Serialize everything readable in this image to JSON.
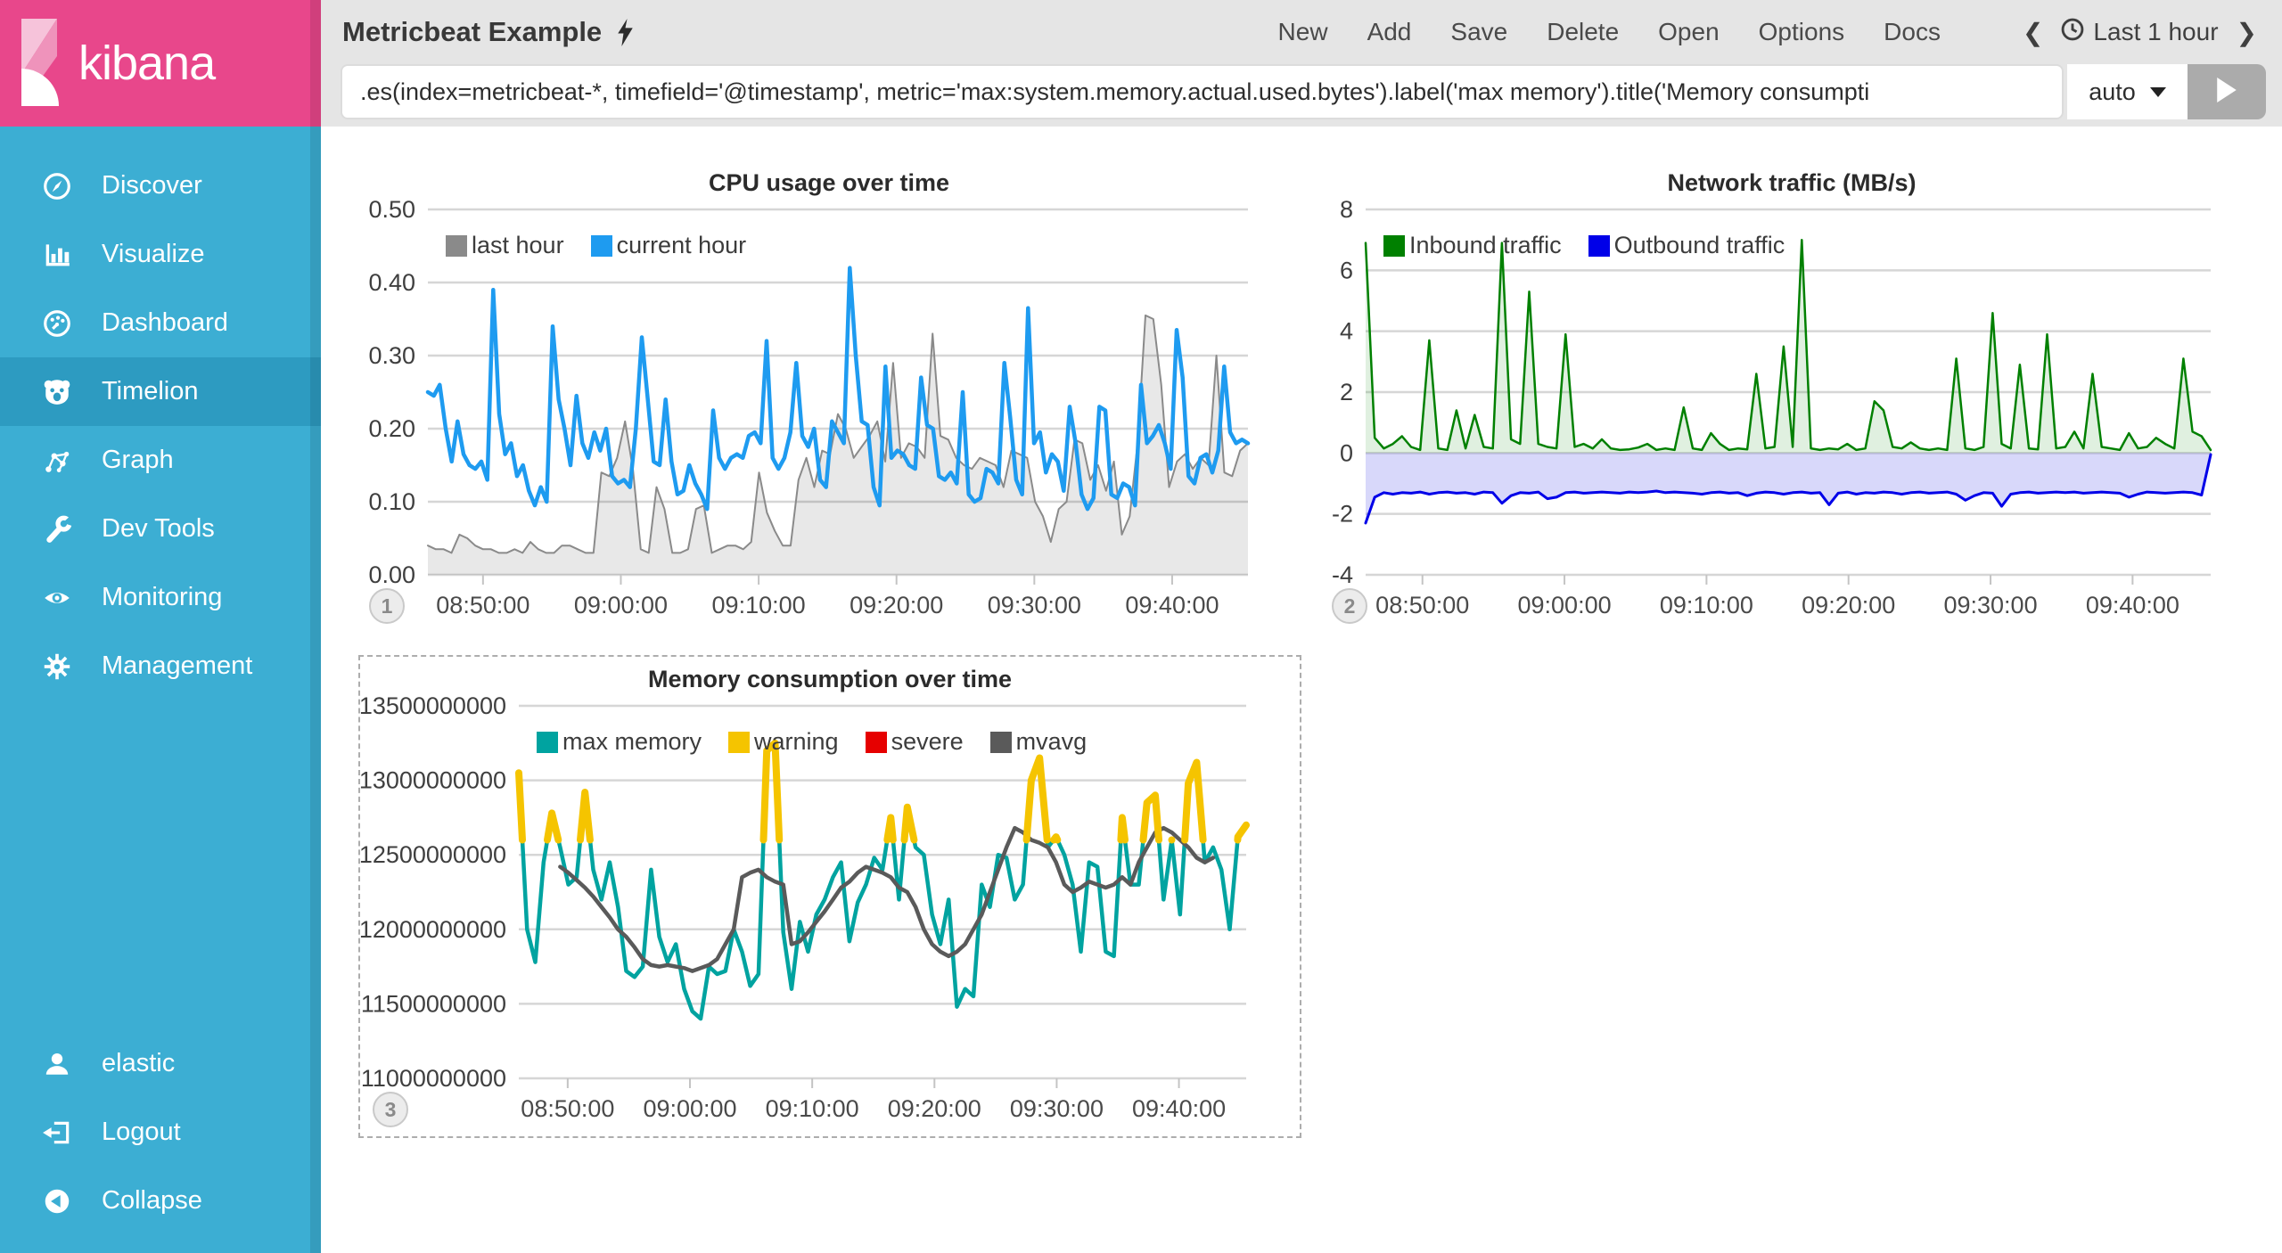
{
  "sidebar": {
    "logo_text": "kibana",
    "items": [
      {
        "label": "Discover",
        "icon": "compass-icon",
        "selected": false
      },
      {
        "label": "Visualize",
        "icon": "bar-chart-icon",
        "selected": false
      },
      {
        "label": "Dashboard",
        "icon": "dashboard-icon",
        "selected": false
      },
      {
        "label": "Timelion",
        "icon": "timelion-icon",
        "selected": true
      },
      {
        "label": "Graph",
        "icon": "graph-icon",
        "selected": false
      },
      {
        "label": "Dev Tools",
        "icon": "wrench-icon",
        "selected": false
      },
      {
        "label": "Monitoring",
        "icon": "eye-icon",
        "selected": false
      },
      {
        "label": "Management",
        "icon": "gear-icon",
        "selected": false
      }
    ],
    "footer_items": [
      {
        "label": "elastic",
        "icon": "user-icon"
      },
      {
        "label": "Logout",
        "icon": "logout-icon"
      },
      {
        "label": "Collapse",
        "icon": "collapse-icon"
      }
    ]
  },
  "topbar": {
    "title": "Metricbeat Example",
    "menu": [
      "New",
      "Add",
      "Save",
      "Delete",
      "Open",
      "Options",
      "Docs"
    ],
    "time_picker": {
      "prev": "❮",
      "label": "Last 1 hour",
      "next": "❯"
    }
  },
  "querybar": {
    "query": ".es(index=metricbeat-*, timefield='@timestamp', metric='max:system.memory.actual.used.bytes').label('max memory').title('Memory consumpti",
    "interval": "auto"
  },
  "colors": {
    "sidebar": "#3caed3",
    "sidebar_selected": "#2d9bc1",
    "brand_pink": "#e8478b",
    "topbar": "#e5e5e5",
    "grid": "#d6d6d6"
  },
  "chart_data": [
    {
      "type": "line",
      "badge": "1",
      "title": "CPU usage over time",
      "x_range": [
        "08:46:00",
        "09:45:30"
      ],
      "x_ticks": [
        "08:50:00",
        "09:00:00",
        "09:10:00",
        "09:20:00",
        "09:30:00",
        "09:40:00"
      ],
      "ylim": [
        0,
        0.5
      ],
      "y_ticks": [
        "0.00",
        "0.10",
        "0.20",
        "0.30",
        "0.40",
        "0.50"
      ],
      "grid": true,
      "legend_position": "top-left",
      "draw_order": [
        0,
        1
      ],
      "series": [
        {
          "name": "last hour",
          "color": "#8a8a8a",
          "width": 2,
          "area": true,
          "fill": "rgba(0,0,0,0.09)",
          "baseline": 0,
          "values": [
            0.04,
            0.035,
            0.035,
            0.03,
            0.055,
            0.05,
            0.04,
            0.035,
            0.035,
            0.03,
            0.03,
            0.035,
            0.03,
            0.045,
            0.035,
            0.03,
            0.03,
            0.04,
            0.04,
            0.035,
            0.03,
            0.03,
            0.14,
            0.135,
            0.16,
            0.21,
            0.145,
            0.035,
            0.03,
            0.12,
            0.09,
            0.03,
            0.03,
            0.035,
            0.09,
            0.095,
            0.03,
            0.035,
            0.04,
            0.04,
            0.035,
            0.045,
            0.14,
            0.085,
            0.06,
            0.04,
            0.04,
            0.13,
            0.16,
            0.12,
            0.17,
            0.165,
            0.22,
            0.2,
            0.16,
            0.175,
            0.19,
            0.21,
            0.155,
            0.29,
            0.16,
            0.18,
            0.175,
            0.16,
            0.33,
            0.19,
            0.185,
            0.16,
            0.15,
            0.145,
            0.16,
            0.155,
            0.15,
            0.12,
            0.17,
            0.165,
            0.16,
            0.1,
            0.08,
            0.045,
            0.09,
            0.1,
            0.185,
            0.18,
            0.13,
            0.15,
            0.115,
            0.155,
            0.055,
            0.08,
            0.18,
            0.355,
            0.35,
            0.26,
            0.12,
            0.155,
            0.165,
            0.145,
            0.16,
            0.15,
            0.3,
            0.14,
            0.135,
            0.17,
            0.18
          ]
        },
        {
          "name": "current hour",
          "color": "#1e9bf0",
          "width": 4.5,
          "values": [
            0.25,
            0.245,
            0.26,
            0.2,
            0.155,
            0.21,
            0.165,
            0.15,
            0.145,
            0.155,
            0.13,
            0.39,
            0.22,
            0.165,
            0.18,
            0.135,
            0.15,
            0.115,
            0.095,
            0.12,
            0.1,
            0.34,
            0.24,
            0.2,
            0.15,
            0.245,
            0.18,
            0.16,
            0.195,
            0.17,
            0.2,
            0.135,
            0.125,
            0.13,
            0.12,
            0.2,
            0.325,
            0.24,
            0.155,
            0.15,
            0.24,
            0.155,
            0.11,
            0.115,
            0.15,
            0.125,
            0.11,
            0.09,
            0.225,
            0.16,
            0.145,
            0.16,
            0.165,
            0.16,
            0.19,
            0.195,
            0.18,
            0.32,
            0.16,
            0.145,
            0.16,
            0.195,
            0.29,
            0.19,
            0.175,
            0.2,
            0.13,
            0.12,
            0.21,
            0.195,
            0.18,
            0.42,
            0.3,
            0.21,
            0.205,
            0.12,
            0.095,
            0.285,
            0.16,
            0.17,
            0.165,
            0.15,
            0.145,
            0.27,
            0.205,
            0.2,
            0.135,
            0.13,
            0.14,
            0.125,
            0.25,
            0.11,
            0.1,
            0.105,
            0.145,
            0.14,
            0.125,
            0.29,
            0.215,
            0.13,
            0.11,
            0.365,
            0.18,
            0.195,
            0.14,
            0.165,
            0.155,
            0.115,
            0.23,
            0.18,
            0.11,
            0.09,
            0.105,
            0.23,
            0.225,
            0.11,
            0.105,
            0.125,
            0.12,
            0.095,
            0.26,
            0.18,
            0.19,
            0.205,
            0.18,
            0.145,
            0.335,
            0.27,
            0.135,
            0.125,
            0.16,
            0.165,
            0.14,
            0.17,
            0.285,
            0.195,
            0.18,
            0.185,
            0.18
          ]
        }
      ]
    },
    {
      "type": "area",
      "badge": "2",
      "title": "Network traffic (MB/s)",
      "x_range": [
        "08:46:00",
        "09:45:30"
      ],
      "x_ticks": [
        "08:50:00",
        "09:00:00",
        "09:10:00",
        "09:20:00",
        "09:30:00",
        "09:40:00"
      ],
      "ylim": [
        -4,
        8
      ],
      "y_ticks": [
        "-4",
        "-2",
        "0",
        "2",
        "4",
        "6",
        "8"
      ],
      "grid": true,
      "legend_position": "top-left",
      "draw_order": [
        0,
        1
      ],
      "series": [
        {
          "name": "Inbound traffic",
          "color": "#008000",
          "width": 2.5,
          "area": true,
          "fill": "rgba(0,128,0,0.12)",
          "baseline": 0,
          "values": [
            6.9,
            0.5,
            0.15,
            0.3,
            0.55,
            0.2,
            0.1,
            3.7,
            0.15,
            0.1,
            1.4,
            0.15,
            1.25,
            0.2,
            0.15,
            6.9,
            0.45,
            0.3,
            5.3,
            0.3,
            0.2,
            0.15,
            3.9,
            0.2,
            0.3,
            0.15,
            0.45,
            0.15,
            0.1,
            0.12,
            0.18,
            0.3,
            0.1,
            0.15,
            0.1,
            1.5,
            0.15,
            0.1,
            0.65,
            0.3,
            0.1,
            0.15,
            0.12,
            2.6,
            0.15,
            0.2,
            3.5,
            0.2,
            7.0,
            0.15,
            0.1,
            0.15,
            0.12,
            0.3,
            0.1,
            0.15,
            1.7,
            1.4,
            0.2,
            0.15,
            0.35,
            0.15,
            0.1,
            0.15,
            0.1,
            3.1,
            0.15,
            0.1,
            0.2,
            4.6,
            0.3,
            0.15,
            2.9,
            0.15,
            0.12,
            3.9,
            0.15,
            0.2,
            0.7,
            0.15,
            2.6,
            0.2,
            0.15,
            0.1,
            0.65,
            0.15,
            0.2,
            0.5,
            0.3,
            0.15,
            3.1,
            0.7,
            0.55,
            0.1
          ]
        },
        {
          "name": "Outbound traffic",
          "color": "#0000e8",
          "width": 3,
          "area": true,
          "fill": "rgba(40,40,230,0.18)",
          "baseline": 0,
          "values": [
            -2.3,
            -1.45,
            -1.3,
            -1.35,
            -1.3,
            -1.32,
            -1.28,
            -1.35,
            -1.3,
            -1.28,
            -1.32,
            -1.3,
            -1.35,
            -1.28,
            -1.3,
            -1.65,
            -1.4,
            -1.3,
            -1.32,
            -1.28,
            -1.5,
            -1.45,
            -1.3,
            -1.28,
            -1.32,
            -1.3,
            -1.28,
            -1.3,
            -1.32,
            -1.28,
            -1.3,
            -1.28,
            -1.25,
            -1.3,
            -1.28,
            -1.3,
            -1.32,
            -1.35,
            -1.3,
            -1.28,
            -1.32,
            -1.3,
            -1.4,
            -1.32,
            -1.28,
            -1.3,
            -1.35,
            -1.3,
            -1.28,
            -1.32,
            -1.3,
            -1.7,
            -1.32,
            -1.28,
            -1.35,
            -1.3,
            -1.32,
            -1.28,
            -1.3,
            -1.35,
            -1.3,
            -1.28,
            -1.32,
            -1.3,
            -1.28,
            -1.35,
            -1.55,
            -1.4,
            -1.3,
            -1.32,
            -1.75,
            -1.35,
            -1.3,
            -1.28,
            -1.32,
            -1.3,
            -1.28,
            -1.3,
            -1.28,
            -1.32,
            -1.3,
            -1.28,
            -1.3,
            -1.32,
            -1.45,
            -1.35,
            -1.28,
            -1.3,
            -1.32,
            -1.3,
            -1.28,
            -1.3,
            -1.38,
            -0.05
          ]
        }
      ]
    },
    {
      "type": "line",
      "badge": "3",
      "selected": true,
      "title": "Memory consumption over time",
      "x_range": [
        "08:46:00",
        "09:45:30"
      ],
      "x_ticks": [
        "08:50:00",
        "09:00:00",
        "09:10:00",
        "09:20:00",
        "09:30:00",
        "09:40:00"
      ],
      "ylim": [
        11000000000,
        13500000000
      ],
      "y_ticks": [
        "11000000000",
        "11500000000",
        "12000000000",
        "12500000000",
        "13000000000",
        "13500000000"
      ],
      "grid": true,
      "legend_position": "top-left",
      "draw_order": [
        0,
        3,
        1,
        2
      ],
      "series": [
        {
          "name": "max memory",
          "color": "#00a3a0",
          "width": 4.5,
          "values": [
            13050000000,
            12000000000,
            11780000000,
            12450000000,
            12780000000,
            12550000000,
            12300000000,
            12350000000,
            12920000000,
            12400000000,
            12200000000,
            12450000000,
            12150000000,
            11720000000,
            11680000000,
            11750000000,
            12400000000,
            11950000000,
            11780000000,
            11900000000,
            11600000000,
            11450000000,
            11400000000,
            11750000000,
            11700000000,
            11720000000,
            12000000000,
            11850000000,
            11620000000,
            11700000000,
            13200000000,
            13250000000,
            11980000000,
            11600000000,
            12050000000,
            11850000000,
            12100000000,
            12200000000,
            12350000000,
            12450000000,
            11920000000,
            12180000000,
            12300000000,
            12480000000,
            12400000000,
            12750000000,
            12200000000,
            12820000000,
            12550000000,
            12500000000,
            12100000000,
            11900000000,
            12200000000,
            11480000000,
            11600000000,
            11550000000,
            12300000000,
            12150000000,
            12500000000,
            12480000000,
            12200000000,
            12300000000,
            13000000000,
            13150000000,
            12550000000,
            12620000000,
            12500000000,
            12300000000,
            11850000000,
            12450000000,
            12420000000,
            11850000000,
            11820000000,
            12750000000,
            12300000000,
            12300000000,
            12850000000,
            12900000000,
            12200000000,
            12600000000,
            12100000000,
            12980000000,
            13120000000,
            12450000000,
            12550000000,
            12400000000,
            12000000000,
            12620000000,
            12700000000
          ]
        },
        {
          "name": "warning",
          "color": "#f5c400",
          "width": 8,
          "type": "threshold-overlay",
          "source": 0,
          "threshold": 12600000000,
          "values": []
        },
        {
          "name": "severe",
          "color": "#e60000",
          "width": 8,
          "type": "threshold-overlay",
          "source": 0,
          "threshold": null,
          "values": []
        },
        {
          "name": "mvavg",
          "color": "#5a5a5a",
          "width": 4.5,
          "values": [
            null,
            null,
            null,
            null,
            null,
            12420000000,
            12380000000,
            12330000000,
            12280000000,
            12220000000,
            12150000000,
            12080000000,
            12000000000,
            11950000000,
            11880000000,
            11800000000,
            11760000000,
            11750000000,
            11760000000,
            11750000000,
            11740000000,
            11720000000,
            11740000000,
            11760000000,
            11800000000,
            11900000000,
            12000000000,
            12350000000,
            12380000000,
            12400000000,
            12350000000,
            12320000000,
            12300000000,
            11900000000,
            11920000000,
            11980000000,
            12050000000,
            12120000000,
            12200000000,
            12280000000,
            12320000000,
            12380000000,
            12420000000,
            12400000000,
            12380000000,
            12350000000,
            12280000000,
            12250000000,
            12150000000,
            12000000000,
            11900000000,
            11850000000,
            11820000000,
            11850000000,
            11900000000,
            12000000000,
            12100000000,
            12250000000,
            12400000000,
            12550000000,
            12680000000,
            12650000000,
            12600000000,
            12580000000,
            12550000000,
            12450000000,
            12300000000,
            12250000000,
            12280000000,
            12320000000,
            12300000000,
            12280000000,
            12300000000,
            12350000000,
            12300000000,
            12450000000,
            12550000000,
            12650000000,
            12680000000,
            12650000000,
            12600000000,
            12550000000,
            12480000000,
            12450000000,
            12480000000,
            null,
            null,
            null,
            null
          ]
        }
      ]
    }
  ]
}
